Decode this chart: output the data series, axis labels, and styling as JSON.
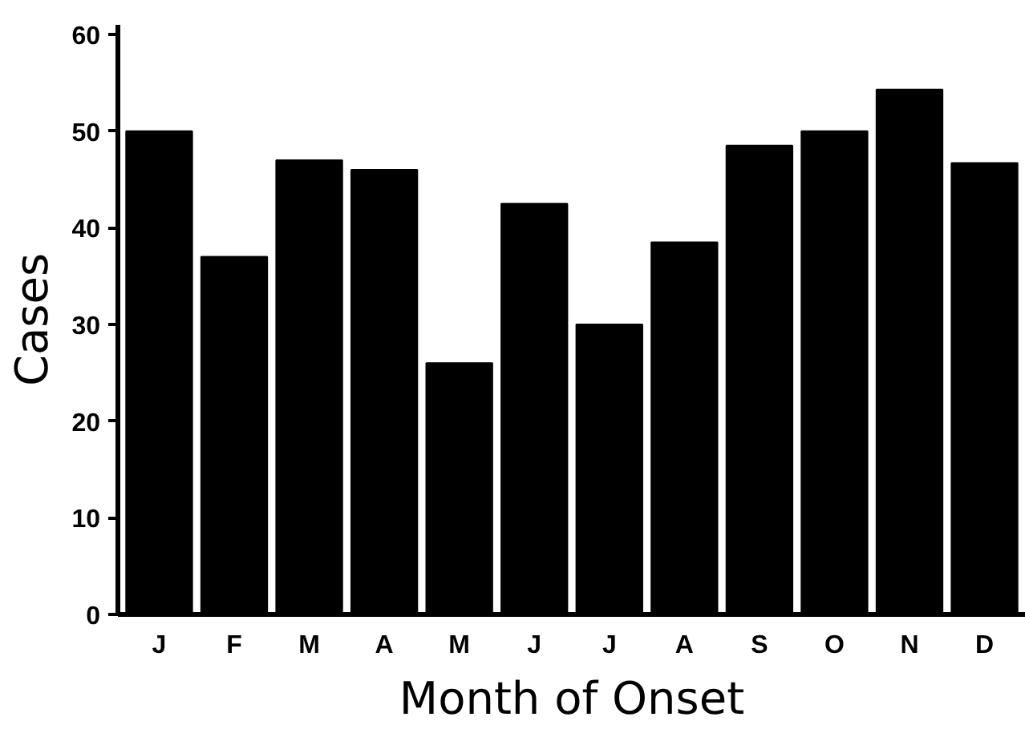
{
  "chart_data": {
    "type": "bar",
    "xlabel": "Month of Onset",
    "ylabel": "Cases",
    "categories": [
      "J",
      "F",
      "M",
      "A",
      "M",
      "J",
      "J",
      "A",
      "S",
      "O",
      "N",
      "D"
    ],
    "values": [
      50,
      37,
      47,
      46,
      26,
      42.5,
      30,
      38.5,
      48.5,
      50,
      54.3,
      46.7
    ],
    "color": "#000000",
    "ylim": [
      0,
      61
    ],
    "yticks": [
      0,
      10,
      20,
      30,
      40,
      50,
      60
    ],
    "grid": false
  }
}
